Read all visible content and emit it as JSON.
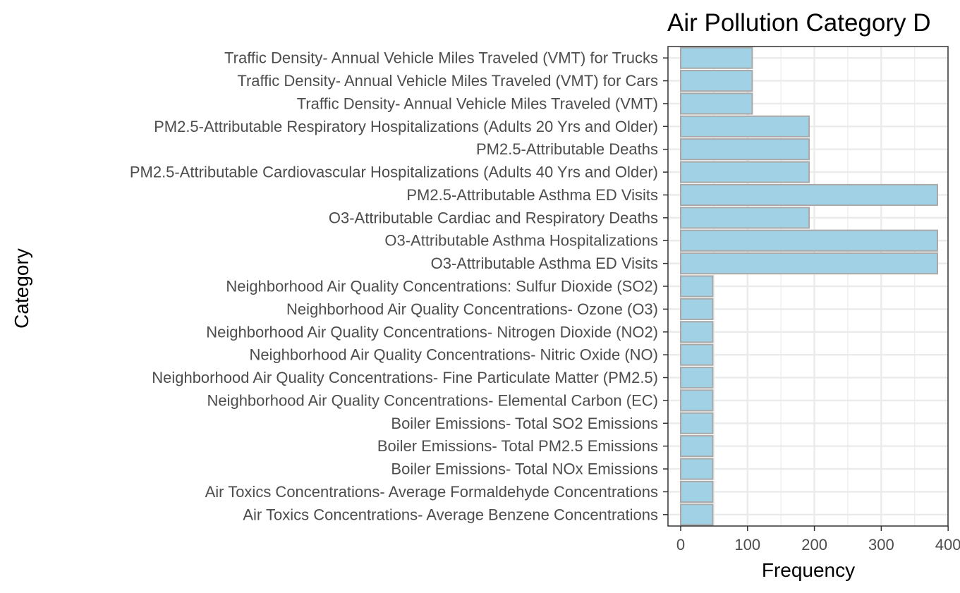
{
  "chart_data": {
    "type": "bar",
    "orientation": "horizontal",
    "title": "Air Pollution Category D",
    "xlabel": "Frequency",
    "ylabel": "Category",
    "xlim": [
      -20,
      400
    ],
    "xticks": [
      0,
      100,
      200,
      300,
      400
    ],
    "grid": true,
    "categories": [
      "Air Toxics Concentrations- Average Benzene Concentrations",
      "Air Toxics Concentrations- Average Formaldehyde Concentrations",
      "Boiler Emissions- Total NOx Emissions",
      "Boiler Emissions- Total PM2.5 Emissions",
      "Boiler Emissions- Total SO2 Emissions",
      "Neighborhood Air Quality Concentrations- Elemental Carbon (EC)",
      "Neighborhood Air Quality Concentrations- Fine Particulate Matter (PM2.5)",
      "Neighborhood Air Quality Concentrations- Nitric Oxide (NO)",
      "Neighborhood Air Quality Concentrations- Nitrogen Dioxide (NO2)",
      "Neighborhood Air Quality Concentrations- Ozone (O3)",
      "Neighborhood Air Quality Concentrations: Sulfur Dioxide (SO2)",
      "O3-Attributable Asthma ED Visits",
      "O3-Attributable Asthma Hospitalizations",
      "O3-Attributable Cardiac and Respiratory Deaths",
      "PM2.5-Attributable Asthma ED Visits",
      "PM2.5-Attributable Cardiovascular Hospitalizations (Adults 40 Yrs and Older)",
      "PM2.5-Attributable Deaths",
      "PM2.5-Attributable Respiratory Hospitalizations (Adults 20 Yrs and Older)",
      "Traffic Density- Annual Vehicle Miles Traveled (VMT)",
      "Traffic Density- Annual Vehicle Miles Traveled (VMT) for Cars",
      "Traffic Density- Annual Vehicle Miles Traveled (VMT) for Trucks"
    ],
    "values": [
      48,
      48,
      48,
      48,
      48,
      48,
      48,
      48,
      48,
      48,
      48,
      384,
      384,
      192,
      384,
      192,
      192,
      192,
      107,
      107,
      107
    ],
    "colors": {
      "bar_fill": "#a1d1e4",
      "bar_stroke": "#a9a9a9",
      "grid": "#ebebeb",
      "panel_border": "#333333",
      "tick_text": "#4d4d4d"
    }
  }
}
